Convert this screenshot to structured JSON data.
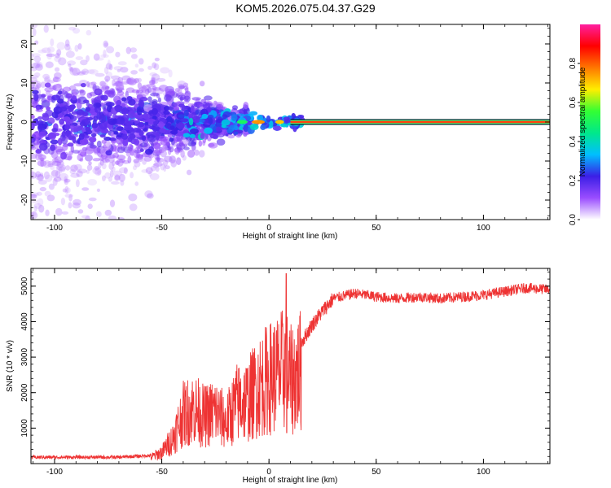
{
  "title": "KOM5.2026.075.04.37.G29",
  "chart_data": [
    {
      "type": "heatmap",
      "title": "KOM5.2026.075.04.37.G29",
      "xlabel": "Height of straight line (km)",
      "ylabel": "Frequency (Hz)",
      "xlim": [
        -111,
        131
      ],
      "ylim": [
        -25,
        25
      ],
      "xticks": [
        -100,
        -50,
        0,
        50,
        100
      ],
      "yticks": [
        -20,
        -10,
        0,
        10,
        20
      ],
      "xtick_labels": [
        "-100",
        "-50",
        "0",
        "50",
        "100"
      ],
      "ytick_labels": [
        "-20",
        "-10",
        "0",
        "10",
        "20"
      ],
      "colorbar": {
        "label": "Normalized spectral amplitude",
        "range": [
          0,
          1
        ],
        "ticks": [
          0.0,
          0.2,
          0.4,
          0.6,
          0.8
        ],
        "tick_labels": [
          "0.0",
          "0.2",
          "0.4",
          "0.6",
          "0.8"
        ],
        "colors": [
          "#ffffff",
          "#9a4dff",
          "#3b1fe6",
          "#00bfff",
          "#00e88a",
          "#33ff33",
          "#ffee00",
          "#ff7700",
          "#ff0000",
          "#ff1fa0"
        ]
      },
      "carrier_line": {
        "freq": 0,
        "from_x": 10,
        "to_x": 131,
        "amplitude": 0.9
      }
    },
    {
      "type": "line",
      "xlabel": "Height of straight line (km)",
      "ylabel": "SNR (10 * v/v)",
      "xlim": [
        -111,
        131
      ],
      "ylim": [
        0,
        5500
      ],
      "xticks": [
        -100,
        -50,
        0,
        50,
        100
      ],
      "yticks": [
        1000,
        2000,
        3000,
        4000,
        5000
      ],
      "xtick_labels": [
        "-100",
        "-50",
        "0",
        "50",
        "100"
      ],
      "ytick_labels": [
        "1000",
        "2000",
        "3000",
        "4000",
        "5000"
      ],
      "color": "#ee3333",
      "envelope": {
        "x": [
          -111,
          -70,
          -55,
          -50,
          -45,
          -40,
          -35,
          -30,
          -25,
          -20,
          -15,
          -10,
          -5,
          0,
          5,
          8,
          10,
          15,
          20,
          25,
          30,
          40,
          50,
          60,
          70,
          80,
          90,
          100,
          110,
          120,
          131
        ],
        "y": [
          180,
          180,
          230,
          400,
          900,
          1800,
          2000,
          1700,
          1900,
          1500,
          2200,
          2300,
          2800,
          3100,
          3300,
          3500,
          3000,
          3400,
          3900,
          4300,
          4650,
          4800,
          4700,
          4650,
          4700,
          4650,
          4700,
          4750,
          4850,
          4950,
          4900
        ]
      },
      "peak": {
        "x": 8,
        "y": 5350
      },
      "dip": {
        "x": 8,
        "y": 870
      }
    }
  ]
}
